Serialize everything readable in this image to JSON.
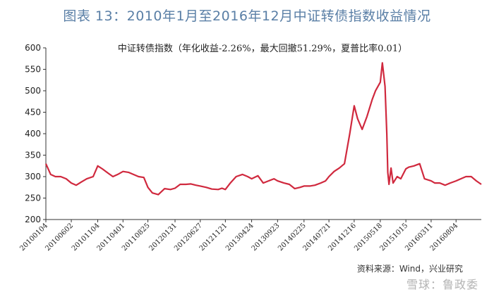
{
  "figure_title": "图表 13：2010年1月至2016年12月中证转债指数收益情况",
  "source_note": "资料来源：Wind，兴业研究",
  "watermark": "雪球：鲁政委",
  "colors": {
    "line": "#d0293e",
    "axis": "#333333",
    "title": "#5a7fa6"
  },
  "chart_data": {
    "type": "line",
    "title": "中证转债指数（年化收益-2.26%，最大回撤51.29%，夏普比率0.01）",
    "xlabel": "",
    "ylabel": "",
    "ylim": [
      200,
      600
    ],
    "yticks": [
      200,
      250,
      300,
      350,
      400,
      450,
      500,
      550,
      600
    ],
    "grid": false,
    "legend": "none",
    "xticks": [
      "20100104",
      "20100602",
      "20101104",
      "20110401",
      "20110825",
      "20120131",
      "20120627",
      "20121121",
      "20130424",
      "20130923",
      "20140225",
      "20140721",
      "20141216",
      "20150518",
      "20151015",
      "20160311",
      "20160804"
    ],
    "series": [
      {
        "x": [
          "20100104",
          "20100201",
          "20100301",
          "20100401",
          "20100503",
          "20100602",
          "20100701",
          "20100802",
          "20100901",
          "20101008",
          "20101104",
          "20101201",
          "20110104",
          "20110201",
          "20110301",
          "20110401",
          "20110503",
          "20110601",
          "20110701",
          "20110801",
          "20110825",
          "20110920",
          "20111025",
          "20111201",
          "20120104",
          "20120131",
          "20120301",
          "20120403",
          "20120503",
          "20120601",
          "20120627",
          "20120801",
          "20120903",
          "20121010",
          "20121101",
          "20121121",
          "20121220",
          "20130123",
          "20130301",
          "20130401",
          "20130424",
          "20130531",
          "20130701",
          "20130801",
          "20130902",
          "20130923",
          "20131030",
          "20131201",
          "20140102",
          "20140201",
          "20140225",
          "20140331",
          "20140430",
          "20140603",
          "20140701",
          "20140721",
          "20140820",
          "20140920",
          "20141020",
          "20141120",
          "20141216",
          "20150105",
          "20150201",
          "20150301",
          "20150401",
          "20150420",
          "20150518",
          "20150530",
          "20150605",
          "20150615",
          "20150625",
          "20150701",
          "20150708",
          "20150720",
          "20150801",
          "20150825",
          "20150915",
          "20151015",
          "20151101",
          "20151201",
          "20160104",
          "20160201",
          "20160311",
          "20160401",
          "20160501",
          "20160601",
          "20160701",
          "20160804",
          "20160901",
          "20161001",
          "20161101",
          "20161201",
          "20161230"
        ],
        "values": [
          330,
          305,
          300,
          300,
          295,
          285,
          280,
          288,
          295,
          300,
          325,
          318,
          308,
          300,
          305,
          312,
          310,
          305,
          300,
          298,
          275,
          262,
          258,
          272,
          270,
          273,
          282,
          282,
          283,
          280,
          278,
          275,
          271,
          270,
          273,
          270,
          285,
          300,
          305,
          300,
          295,
          302,
          285,
          290,
          295,
          290,
          285,
          282,
          272,
          275,
          278,
          278,
          280,
          285,
          290,
          300,
          312,
          320,
          330,
          400,
          465,
          435,
          410,
          440,
          480,
          500,
          520,
          565,
          545,
          510,
          400,
          310,
          282,
          320,
          285,
          300,
          295,
          318,
          322,
          325,
          330,
          295,
          290,
          285,
          285,
          280,
          285,
          290,
          295,
          300,
          300,
          290,
          282
        ]
      }
    ]
  }
}
